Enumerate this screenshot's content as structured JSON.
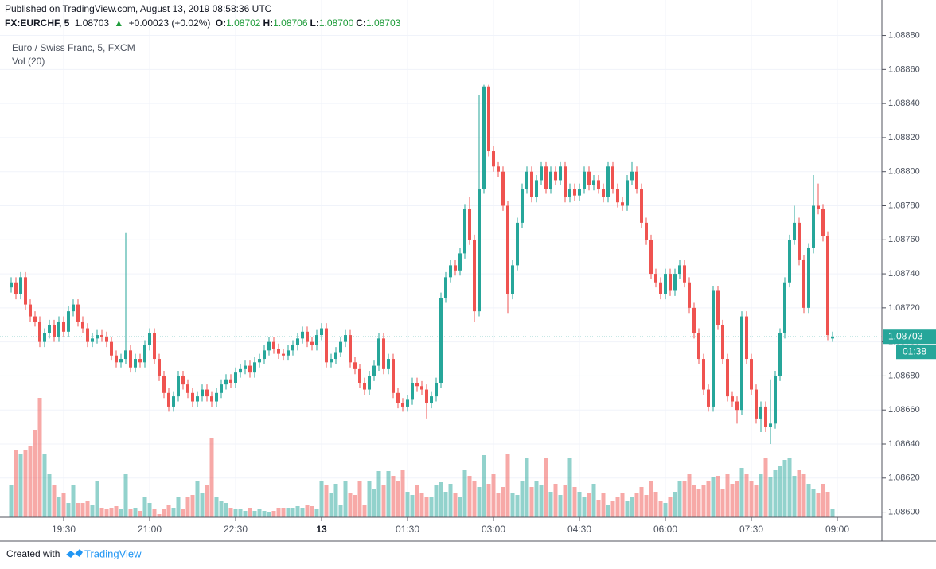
{
  "header": {
    "published": "Published on TradingView.com, August 13, 2019 08:58:36 UTC",
    "symbol": "FX:EURCHF, 5",
    "last": "1.08703",
    "arrow": "▲",
    "change": "+0.00023 (+0.02%)",
    "ohlc": [
      {
        "label": "O:",
        "value": "1.08702"
      },
      {
        "label": "H:",
        "value": "1.08706"
      },
      {
        "label": "L:",
        "value": "1.08700"
      },
      {
        "label": "C:",
        "value": "1.08703"
      }
    ]
  },
  "legend": {
    "series": "Euro / Swiss Franc, 5, FXCM",
    "volume": "Vol (20)"
  },
  "price_label": "1.08703",
  "countdown": "01:38",
  "footer": {
    "created": "Created with",
    "brand": "TradingView"
  },
  "chart_data": {
    "type": "candlestick",
    "up_color": "#26a69a",
    "down_color": "#ef5350",
    "grid": true,
    "x": [
      "18:35",
      "18:40",
      "18:45",
      "18:50",
      "18:55",
      "19:00",
      "19:05",
      "19:10",
      "19:15",
      "19:20",
      "19:25",
      "19:30",
      "19:35",
      "19:40",
      "19:45",
      "19:50",
      "19:55",
      "20:00",
      "20:05",
      "20:10",
      "20:15",
      "20:20",
      "20:25",
      "20:30",
      "20:35",
      "20:40",
      "20:45",
      "20:50",
      "20:55",
      "21:00",
      "21:05",
      "21:10",
      "21:15",
      "21:20",
      "21:25",
      "21:30",
      "21:35",
      "21:40",
      "21:45",
      "21:50",
      "21:55",
      "22:00",
      "22:05",
      "22:10",
      "22:15",
      "22:20",
      "22:25",
      "22:30",
      "22:35",
      "22:40",
      "22:45",
      "22:50",
      "22:55",
      "23:00",
      "23:05",
      "23:10",
      "23:15",
      "23:20",
      "23:25",
      "23:30",
      "23:35",
      "23:40",
      "23:45",
      "23:50",
      "23:55",
      "00:00",
      "00:05",
      "00:10",
      "00:15",
      "00:20",
      "00:25",
      "00:30",
      "00:35",
      "00:40",
      "00:45",
      "00:50",
      "00:55",
      "01:00",
      "01:05",
      "01:10",
      "01:15",
      "01:20",
      "01:25",
      "01:30",
      "01:35",
      "01:40",
      "01:45",
      "01:50",
      "01:55",
      "02:00",
      "02:05",
      "02:10",
      "02:15",
      "02:20",
      "02:25",
      "02:30",
      "02:35",
      "02:40",
      "02:45",
      "02:50",
      "02:55",
      "03:00",
      "03:05",
      "03:10",
      "03:15",
      "03:20",
      "03:25",
      "03:30",
      "03:35",
      "03:40",
      "03:45",
      "03:50",
      "03:55",
      "04:00",
      "04:05",
      "04:10",
      "04:15",
      "04:20",
      "04:25",
      "04:30",
      "04:35",
      "04:40",
      "04:45",
      "04:50",
      "04:55",
      "05:00",
      "05:05",
      "05:10",
      "05:15",
      "05:20",
      "05:25",
      "05:30",
      "05:35",
      "05:40",
      "05:45",
      "05:50",
      "05:55",
      "06:00",
      "06:05",
      "06:10",
      "06:15",
      "06:20",
      "06:25",
      "06:30",
      "06:35",
      "06:40",
      "06:45",
      "06:50",
      "06:55",
      "07:00",
      "07:05",
      "07:10",
      "07:15",
      "07:20",
      "07:25",
      "07:30",
      "07:35",
      "07:40",
      "07:45",
      "07:50",
      "07:55",
      "08:00",
      "08:05",
      "08:10",
      "08:15",
      "08:20",
      "08:25",
      "08:30",
      "08:35",
      "08:40",
      "08:45",
      "08:50",
      "08:55"
    ],
    "open": [
      1.08732,
      1.08735,
      1.08728,
      1.08738,
      1.08722,
      1.08715,
      1.08712,
      1.087,
      1.08705,
      1.0871,
      1.08703,
      1.08712,
      1.08706,
      1.08718,
      1.08722,
      1.08712,
      1.08708,
      1.087,
      1.08702,
      1.08704,
      1.08703,
      1.087,
      1.08692,
      1.08688,
      1.0869,
      1.08695,
      1.08685,
      1.0869,
      1.08688,
      1.08698,
      1.08705,
      1.0869,
      1.0868,
      1.0867,
      1.08662,
      1.08668,
      1.0868,
      1.08675,
      1.0867,
      1.08665,
      1.08668,
      1.08672,
      1.08668,
      1.08665,
      1.0867,
      1.08675,
      1.08678,
      1.08676,
      1.08682,
      1.08684,
      1.08686,
      1.08682,
      1.08688,
      1.0869,
      1.08695,
      1.087,
      1.08696,
      1.08693,
      1.08692,
      1.08695,
      1.08698,
      1.08702,
      1.08706,
      1.087,
      1.08698,
      1.08704,
      1.08708,
      1.08688,
      1.0869,
      1.08694,
      1.087,
      1.08704,
      1.08688,
      1.08684,
      1.08676,
      1.08672,
      1.0868,
      1.08686,
      1.08702,
      1.08684,
      1.0869,
      1.0867,
      1.08664,
      1.08662,
      1.08666,
      1.08676,
      1.08674,
      1.08672,
      1.08664,
      1.08668,
      1.08676,
      1.08726,
      1.08738,
      1.08745,
      1.08742,
      1.08752,
      1.08778,
      1.0876,
      1.08718,
      1.0879,
      1.0885,
      1.08812,
      1.08803,
      1.088,
      1.0878,
      1.08728,
      1.08745,
      1.0877,
      1.0879,
      1.088,
      1.08785,
      1.08795,
      1.08803,
      1.0879,
      1.088,
      1.08795,
      1.08803,
      1.08785,
      1.0879,
      1.08786,
      1.0879,
      1.088,
      1.08792,
      1.08795,
      1.0879,
      1.08785,
      1.08803,
      1.0879,
      1.08782,
      1.0878,
      1.08795,
      1.088,
      1.0879,
      1.0877,
      1.0876,
      1.0874,
      1.08735,
      1.08728,
      1.0874,
      1.0873,
      1.0874,
      1.08745,
      1.08735,
      1.0872,
      1.08705,
      1.0869,
      1.08672,
      1.08662,
      1.0873,
      1.0871,
      1.0869,
      1.08668,
      1.08665,
      1.0866,
      1.08715,
      1.0869,
      1.08672,
      1.08655,
      1.08662,
      1.0865,
      1.08652,
      1.0868,
      1.08705,
      1.08735,
      1.0876,
      1.0877,
      1.08748,
      1.0872,
      1.08755,
      1.0878,
      1.08778,
      1.08762,
      1.08702
    ],
    "high": [
      1.08738,
      1.08738,
      1.08741,
      1.08741,
      1.08725,
      1.08718,
      1.08715,
      1.08708,
      1.08713,
      1.08713,
      1.08715,
      1.08715,
      1.08721,
      1.08725,
      1.08725,
      1.08715,
      1.08711,
      1.08705,
      1.08707,
      1.08707,
      1.08706,
      1.08703,
      1.08695,
      1.08693,
      1.08764,
      1.08698,
      1.08693,
      1.08693,
      1.08701,
      1.08708,
      1.08708,
      1.08693,
      1.08683,
      1.08673,
      1.08671,
      1.08683,
      1.08683,
      1.08678,
      1.08673,
      1.08671,
      1.08675,
      1.08675,
      1.08671,
      1.08673,
      1.08678,
      1.08681,
      1.08681,
      1.08685,
      1.08687,
      1.08689,
      1.08689,
      1.08691,
      1.08693,
      1.08698,
      1.08703,
      1.08703,
      1.08699,
      1.08696,
      1.08698,
      1.08701,
      1.08705,
      1.08709,
      1.08709,
      1.08703,
      1.08707,
      1.08711,
      1.08711,
      1.08693,
      1.08697,
      1.08703,
      1.08707,
      1.08707,
      1.08691,
      1.08687,
      1.08679,
      1.08683,
      1.08689,
      1.08705,
      1.08705,
      1.08693,
      1.08693,
      1.08673,
      1.08667,
      1.08669,
      1.08679,
      1.08679,
      1.08677,
      1.08675,
      1.08671,
      1.08679,
      1.08729,
      1.08741,
      1.08748,
      1.08748,
      1.08755,
      1.08781,
      1.08785,
      1.08763,
      1.08845,
      1.08851,
      1.08851,
      1.08815,
      1.08806,
      1.08803,
      1.08783,
      1.08748,
      1.08773,
      1.08793,
      1.08803,
      1.08803,
      1.08798,
      1.08806,
      1.08806,
      1.08803,
      1.08803,
      1.08806,
      1.08806,
      1.08793,
      1.08793,
      1.08793,
      1.08803,
      1.08803,
      1.08798,
      1.08798,
      1.08793,
      1.08806,
      1.08806,
      1.08793,
      1.08785,
      1.08798,
      1.08806,
      1.08803,
      1.08793,
      1.08773,
      1.08763,
      1.08743,
      1.08738,
      1.08743,
      1.08743,
      1.08743,
      1.08748,
      1.08748,
      1.08738,
      1.08723,
      1.08708,
      1.08693,
      1.08675,
      1.08733,
      1.08733,
      1.08713,
      1.08693,
      1.08671,
      1.08668,
      1.08718,
      1.08718,
      1.08693,
      1.08675,
      1.08665,
      1.08665,
      1.08678,
      1.08683,
      1.08708,
      1.08738,
      1.08763,
      1.0878,
      1.08773,
      1.08751,
      1.08758,
      1.08798,
      1.08793,
      1.08781,
      1.08765,
      1.08706
    ],
    "low": [
      1.08729,
      1.08725,
      1.08725,
      1.08719,
      1.08712,
      1.08709,
      1.08697,
      1.08697,
      1.08702,
      1.087,
      1.087,
      1.08703,
      1.08703,
      1.08715,
      1.08709,
      1.08705,
      1.08697,
      1.08697,
      1.08699,
      1.087,
      1.08697,
      1.08689,
      1.08685,
      1.08685,
      1.08687,
      1.08682,
      1.08682,
      1.08685,
      1.08685,
      1.08695,
      1.08687,
      1.08677,
      1.08667,
      1.08659,
      1.08659,
      1.08665,
      1.08672,
      1.08667,
      1.08662,
      1.08662,
      1.08665,
      1.08665,
      1.08662,
      1.08662,
      1.08667,
      1.08672,
      1.08673,
      1.08673,
      1.08679,
      1.08681,
      1.08679,
      1.08679,
      1.08685,
      1.08687,
      1.08692,
      1.08693,
      1.0869,
      1.08689,
      1.08689,
      1.08692,
      1.08695,
      1.08699,
      1.08697,
      1.08695,
      1.08695,
      1.08701,
      1.08685,
      1.08685,
      1.08687,
      1.08691,
      1.08697,
      1.08685,
      1.08681,
      1.08673,
      1.08669,
      1.08669,
      1.08677,
      1.08683,
      1.08681,
      1.08681,
      1.08667,
      1.08661,
      1.08659,
      1.08659,
      1.08663,
      1.08671,
      1.08669,
      1.08655,
      1.08661,
      1.08665,
      1.08673,
      1.08723,
      1.08735,
      1.08739,
      1.08739,
      1.08749,
      1.08757,
      1.08712,
      1.08715,
      1.08787,
      1.08809,
      1.088,
      1.08797,
      1.08777,
      1.08717,
      1.08725,
      1.08742,
      1.08767,
      1.08787,
      1.08782,
      1.08782,
      1.08792,
      1.08787,
      1.08787,
      1.08792,
      1.08792,
      1.08782,
      1.08782,
      1.08783,
      1.08783,
      1.08787,
      1.08789,
      1.08789,
      1.08787,
      1.08782,
      1.08782,
      1.08787,
      1.08779,
      1.08777,
      1.08777,
      1.08792,
      1.08787,
      1.08767,
      1.08757,
      1.08737,
      1.08732,
      1.08725,
      1.08725,
      1.08727,
      1.08727,
      1.08737,
      1.08732,
      1.08717,
      1.08702,
      1.08687,
      1.08669,
      1.08659,
      1.08659,
      1.08707,
      1.08687,
      1.08665,
      1.08662,
      1.08652,
      1.08657,
      1.08687,
      1.08669,
      1.08652,
      1.08647,
      1.08647,
      1.0864,
      1.08649,
      1.08677,
      1.08702,
      1.08732,
      1.08757,
      1.08745,
      1.08717,
      1.08717,
      1.08752,
      1.08775,
      1.08759,
      1.08701,
      1.087
    ],
    "close": [
      1.08735,
      1.08728,
      1.08738,
      1.08722,
      1.08715,
      1.08712,
      1.087,
      1.08705,
      1.0871,
      1.08703,
      1.08712,
      1.08706,
      1.08718,
      1.08722,
      1.08712,
      1.08708,
      1.087,
      1.08702,
      1.08704,
      1.08703,
      1.087,
      1.08692,
      1.08688,
      1.0869,
      1.08695,
      1.08685,
      1.0869,
      1.08688,
      1.08698,
      1.08705,
      1.0869,
      1.0868,
      1.0867,
      1.08662,
      1.08668,
      1.0868,
      1.08675,
      1.0867,
      1.08665,
      1.08668,
      1.08672,
      1.08668,
      1.08665,
      1.0867,
      1.08675,
      1.08678,
      1.08676,
      1.08682,
      1.08684,
      1.08686,
      1.08682,
      1.08688,
      1.0869,
      1.08695,
      1.087,
      1.08696,
      1.08693,
      1.08692,
      1.08695,
      1.08698,
      1.08702,
      1.08706,
      1.087,
      1.08698,
      1.08704,
      1.08708,
      1.08688,
      1.0869,
      1.08694,
      1.087,
      1.08704,
      1.08688,
      1.08684,
      1.08676,
      1.08672,
      1.0868,
      1.08686,
      1.08702,
      1.08684,
      1.0869,
      1.0867,
      1.08664,
      1.08662,
      1.08666,
      1.08676,
      1.08674,
      1.08672,
      1.08664,
      1.08668,
      1.08676,
      1.08726,
      1.08738,
      1.08745,
      1.08742,
      1.08752,
      1.08778,
      1.0876,
      1.08718,
      1.0879,
      1.0885,
      1.08812,
      1.08803,
      1.088,
      1.0878,
      1.08728,
      1.08745,
      1.0877,
      1.0879,
      1.088,
      1.08785,
      1.08795,
      1.08803,
      1.0879,
      1.088,
      1.08795,
      1.08803,
      1.08785,
      1.0879,
      1.08786,
      1.0879,
      1.088,
      1.08792,
      1.08795,
      1.0879,
      1.08785,
      1.08803,
      1.0879,
      1.08782,
      1.0878,
      1.08795,
      1.088,
      1.0879,
      1.0877,
      1.0876,
      1.0874,
      1.08735,
      1.08728,
      1.0874,
      1.0873,
      1.0874,
      1.08745,
      1.08735,
      1.0872,
      1.08705,
      1.0869,
      1.08672,
      1.08662,
      1.0873,
      1.0871,
      1.0869,
      1.08668,
      1.08665,
      1.0866,
      1.08715,
      1.0869,
      1.08672,
      1.08655,
      1.08662,
      1.0865,
      1.08652,
      1.0868,
      1.08705,
      1.08735,
      1.0876,
      1.0877,
      1.08748,
      1.0872,
      1.08755,
      1.0878,
      1.08778,
      1.08762,
      1.08704,
      1.08703
    ],
    "volume": [
      40,
      85,
      80,
      85,
      90,
      110,
      150,
      80,
      55,
      40,
      25,
      30,
      18,
      40,
      18,
      18,
      20,
      16,
      45,
      12,
      10,
      12,
      14,
      10,
      55,
      10,
      12,
      8,
      25,
      18,
      10,
      4,
      10,
      15,
      12,
      25,
      10,
      25,
      28,
      45,
      30,
      40,
      100,
      25,
      20,
      18,
      12,
      10,
      10,
      8,
      12,
      8,
      10,
      8,
      6,
      8,
      12,
      12,
      12,
      12,
      14,
      12,
      15,
      14,
      10,
      45,
      40,
      30,
      42,
      15,
      45,
      30,
      28,
      45,
      15,
      45,
      35,
      58,
      40,
      58,
      52,
      45,
      60,
      32,
      28,
      40,
      30,
      25,
      25,
      40,
      44,
      32,
      42,
      30,
      25,
      60,
      52,
      45,
      38,
      78,
      42,
      55,
      30,
      38,
      80,
      30,
      28,
      45,
      74,
      38,
      45,
      40,
      75,
      32,
      42,
      28,
      40,
      75,
      38,
      32,
      25,
      30,
      42,
      22,
      30,
      15,
      20,
      25,
      30,
      20,
      25,
      30,
      38,
      28,
      45,
      32,
      20,
      18,
      25,
      32,
      45,
      45,
      55,
      40,
      35,
      40,
      45,
      50,
      52,
      35,
      55,
      42,
      45,
      62,
      55,
      45,
      40,
      55,
      75,
      50,
      60,
      65,
      72,
      75,
      52,
      60,
      55,
      42,
      35,
      30,
      42,
      32,
      10
    ],
    "ylim": [
      1.08597,
      1.08884
    ],
    "yticks": [
      {
        "value": 1.086,
        "label": "1.08600"
      },
      {
        "value": 1.0862,
        "label": "1.08620"
      },
      {
        "value": 1.0864,
        "label": "1.08640"
      },
      {
        "value": 1.0866,
        "label": "1.08660"
      },
      {
        "value": 1.0868,
        "label": "1.08680"
      },
      {
        "value": 1.087,
        "label": "1.08700"
      },
      {
        "value": 1.0872,
        "label": "1.08720"
      },
      {
        "value": 1.0874,
        "label": "1.08740"
      },
      {
        "value": 1.0876,
        "label": "1.08760"
      },
      {
        "value": 1.0878,
        "label": "1.08780"
      },
      {
        "value": 1.088,
        "label": "1.08800"
      },
      {
        "value": 1.0882,
        "label": "1.08820"
      },
      {
        "value": 1.0884,
        "label": "1.08840"
      },
      {
        "value": 1.0886,
        "label": "1.08860"
      },
      {
        "value": 1.0888,
        "label": "1.08880"
      }
    ],
    "xticks": [
      "19:30",
      "21:00",
      "22:30",
      {
        "value": "00:00",
        "label": "13"
      },
      "01:30",
      "03:00",
      "04:30",
      "06:00",
      "07:30",
      "09:00"
    ]
  }
}
